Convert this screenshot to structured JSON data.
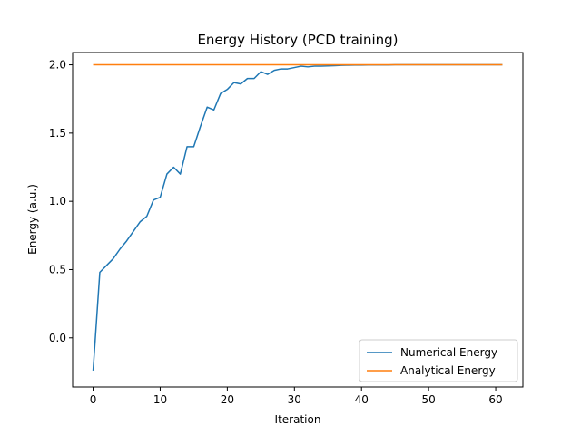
{
  "chart_data": {
    "type": "line",
    "title": "Energy History (PCD training)",
    "xlabel": "Iteration",
    "ylabel": "Energy (a.u.)",
    "xlim": [
      -3.05,
      64.05
    ],
    "ylim": [
      -0.36,
      2.09
    ],
    "xticks": [
      0,
      10,
      20,
      30,
      40,
      50,
      60
    ],
    "yticks": [
      0.0,
      0.5,
      1.0,
      1.5,
      2.0
    ],
    "xtick_labels": [
      "0",
      "10",
      "20",
      "30",
      "40",
      "50",
      "60"
    ],
    "ytick_labels": [
      "0.0",
      "0.5",
      "1.0",
      "1.5",
      "2.0"
    ],
    "grid": false,
    "legend_position": "lower-right",
    "series": [
      {
        "name": "Numerical Energy",
        "color": "#1f77b4",
        "x": [
          0,
          1,
          2,
          3,
          4,
          5,
          6,
          7,
          8,
          9,
          10,
          11,
          12,
          13,
          14,
          15,
          16,
          17,
          18,
          19,
          20,
          21,
          22,
          23,
          24,
          25,
          26,
          27,
          28,
          29,
          30,
          31,
          32,
          33,
          34,
          35,
          36,
          37,
          38,
          39,
          40,
          41,
          42,
          43,
          44,
          45,
          46,
          47,
          48,
          49,
          50,
          51,
          52,
          53,
          54,
          55,
          56,
          57,
          58,
          59,
          60,
          61
        ],
        "y": [
          -0.24,
          0.48,
          0.53,
          0.58,
          0.65,
          0.71,
          0.78,
          0.85,
          0.89,
          1.01,
          1.03,
          1.2,
          1.25,
          1.2,
          1.4,
          1.4,
          1.55,
          1.69,
          1.67,
          1.79,
          1.82,
          1.87,
          1.86,
          1.9,
          1.9,
          1.95,
          1.93,
          1.96,
          1.97,
          1.97,
          1.98,
          1.99,
          1.985,
          1.99,
          1.99,
          1.992,
          1.994,
          1.996,
          1.997,
          1.998,
          1.998,
          1.999,
          1.999,
          1.999,
          1.999,
          2.0,
          2.0,
          2.0,
          2.0,
          2.0,
          2.0,
          2.0,
          2.0,
          2.0,
          2.0,
          2.0,
          2.0,
          2.0,
          2.0,
          2.0,
          2.0,
          2.0
        ]
      },
      {
        "name": "Analytical Energy",
        "color": "#ff7f0e",
        "x": [
          0,
          61
        ],
        "y": [
          2.0,
          2.0
        ]
      }
    ]
  }
}
